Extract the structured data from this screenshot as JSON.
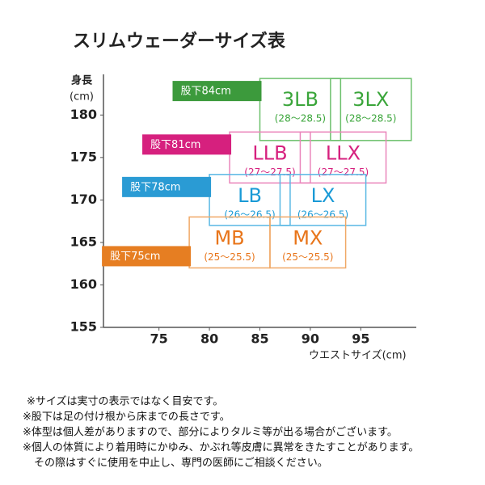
{
  "chart_data": {
    "type": "size-chart",
    "title": "スリムウェーダーサイズ表",
    "y_label": [
      "身長",
      "(cm)"
    ],
    "x_label": "ウエストサイズ(cm)",
    "xlim": [
      69.5,
      100.5
    ],
    "ylim": [
      155,
      184.5
    ],
    "xticks": [
      75,
      80,
      85,
      90,
      95
    ],
    "yticks": [
      155,
      160,
      165,
      170,
      175,
      180
    ],
    "groups": [
      {
        "inseam": "股下84cm",
        "color": "#3c9a3c",
        "box_color": "#6cc06c",
        "text_color": "#3aa53a",
        "boxes": [
          {
            "label": "3LB",
            "range": "(28～28.5)",
            "x": [
              85,
              93
            ],
            "y": [
              177,
              184.3
            ]
          },
          {
            "label": "3LX",
            "range": "(28～28.5)",
            "x": [
              92,
              100
            ],
            "y": [
              177,
              184.3
            ]
          }
        ]
      },
      {
        "inseam": "股下81cm",
        "color": "#d6207e",
        "box_color": "#ea85bb",
        "text_color": "#d6207e",
        "boxes": [
          {
            "label": "LLB",
            "range": "(27～27.5)",
            "x": [
              82,
              90
            ],
            "y": [
              172,
              178
            ]
          },
          {
            "label": "LLX",
            "range": "(27～27.5)",
            "x": [
              89,
              97.5
            ],
            "y": [
              172,
              178
            ]
          }
        ]
      },
      {
        "inseam": "股下78cm",
        "color": "#2a9bd4",
        "box_color": "#5ab8e4",
        "text_color": "#1a9ad6",
        "boxes": [
          {
            "label": "LB",
            "range": "(26～26.5)",
            "x": [
              80,
              88
            ],
            "y": [
              167,
              173
            ]
          },
          {
            "label": "LX",
            "range": "(26～26.5)",
            "x": [
              87,
              95.5
            ],
            "y": [
              167,
              173
            ]
          }
        ]
      },
      {
        "inseam": "股下75cm",
        "color": "#e67e22",
        "box_color": "#f0a866",
        "text_color": "#e8751a",
        "boxes": [
          {
            "label": "MB",
            "range": "(25～25.5)",
            "x": [
              78,
              86
            ],
            "y": [
              162,
              168
            ]
          },
          {
            "label": "MX",
            "range": "(25～25.5)",
            "x": [
              86,
              93.5
            ],
            "y": [
              162,
              168
            ]
          }
        ]
      }
    ],
    "notes": [
      "※サイズは実寸の表示ではなく目安です。",
      "※股下は足の付け根から床までの長さです。",
      "※体型は個人差がありますので、部分によりタルミ等が出る場合がございます。",
      "※個人の体質により着用時にかゆみ、かぶれ等皮膚に異常をきたすことがあります。",
      "その際はすぐに使用を中止し、専門の医師にご相談ください。"
    ]
  }
}
